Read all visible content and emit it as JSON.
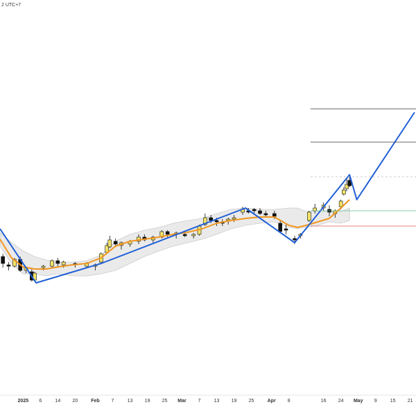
{
  "chart_data": {
    "type": "candlestick",
    "timezone_label": "2 UTC+7",
    "xlim": [
      0,
      144
    ],
    "ylim": [
      0,
      570
    ],
    "xticks": [
      {
        "value": 8,
        "label": "2025"
      },
      {
        "value": 14,
        "label": "6"
      },
      {
        "value": 20,
        "label": "14"
      },
      {
        "value": 26,
        "label": "20"
      },
      {
        "value": 33,
        "label": "Feb"
      },
      {
        "value": 39,
        "label": "7"
      },
      {
        "value": 45,
        "label": "13"
      },
      {
        "value": 51,
        "label": "19"
      },
      {
        "value": 57,
        "label": "25"
      },
      {
        "value": 63,
        "label": "Mar"
      },
      {
        "value": 69,
        "label": "7"
      },
      {
        "value": 75,
        "label": "13"
      },
      {
        "value": 81,
        "label": "19"
      },
      {
        "value": 87,
        "label": "25"
      },
      {
        "value": 94,
        "label": "Apr"
      },
      {
        "value": 100,
        "label": "8"
      },
      {
        "value": 112,
        "label": "16"
      },
      {
        "value": 118,
        "label": "24"
      },
      {
        "value": 124,
        "label": "May"
      },
      {
        "value": 130,
        "label": "9"
      },
      {
        "value": 136,
        "label": "15"
      },
      {
        "value": 142,
        "label": "21"
      }
    ],
    "up_color": "#f3e36a",
    "down_color": "#111111",
    "x": [
      1,
      3,
      5,
      7,
      9,
      11,
      12,
      15,
      18,
      20,
      22,
      26,
      30,
      33,
      35,
      37,
      38,
      40,
      42,
      45,
      48,
      50,
      53,
      56,
      58,
      61,
      64,
      67,
      69,
      71,
      73,
      75,
      77,
      79,
      81,
      84,
      86,
      88,
      90,
      92,
      95,
      97,
      99,
      102,
      104,
      107,
      109,
      112,
      114,
      116,
      118,
      119,
      120,
      121
    ],
    "open": [
      200,
      188,
      186,
      196,
      180,
      178,
      166,
      184,
      186,
      194,
      188,
      190,
      186,
      186,
      192,
      206,
      214,
      222,
      216,
      218,
      222,
      228,
      224,
      228,
      236,
      232,
      232,
      230,
      232,
      246,
      256,
      252,
      250,
      252,
      254,
      264,
      266,
      268,
      266,
      262,
      262,
      248,
      240,
      226,
      230,
      252,
      266,
      270,
      268,
      262,
      272,
      290,
      298,
      310
    ],
    "high": [
      204,
      192,
      198,
      200,
      186,
      182,
      178,
      188,
      196,
      198,
      194,
      192,
      192,
      190,
      206,
      220,
      230,
      226,
      222,
      224,
      232,
      232,
      230,
      238,
      238,
      236,
      236,
      234,
      246,
      262,
      260,
      256,
      254,
      256,
      260,
      272,
      270,
      270,
      270,
      266,
      266,
      252,
      246,
      230,
      234,
      266,
      276,
      278,
      274,
      268,
      282,
      300,
      314,
      316
    ],
    "low": [
      184,
      180,
      184,
      178,
      176,
      164,
      164,
      180,
      184,
      186,
      184,
      184,
      184,
      180,
      190,
      204,
      212,
      214,
      210,
      214,
      218,
      222,
      220,
      226,
      228,
      226,
      228,
      226,
      230,
      244,
      248,
      244,
      244,
      246,
      250,
      260,
      262,
      262,
      260,
      256,
      254,
      234,
      232,
      218,
      226,
      250,
      262,
      266,
      258,
      256,
      268,
      288,
      294,
      300
    ],
    "close": [
      190,
      186,
      196,
      180,
      184,
      166,
      176,
      186,
      194,
      190,
      192,
      188,
      190,
      188,
      204,
      216,
      224,
      218,
      220,
      222,
      228,
      224,
      228,
      236,
      232,
      234,
      230,
      232,
      244,
      256,
      252,
      250,
      248,
      254,
      256,
      268,
      264,
      266,
      262,
      260,
      258,
      236,
      238,
      224,
      232,
      264,
      270,
      274,
      264,
      266,
      280,
      296,
      304,
      302
    ],
    "overlays": [
      {
        "kind": "band",
        "color": "#d9d9d9",
        "x": [
          0,
          4,
          8,
          12,
          16,
          20,
          25,
          30,
          35,
          40,
          45,
          50,
          55,
          60,
          65,
          70,
          75,
          80,
          85,
          90,
          95,
          100,
          103,
          106,
          110,
          114,
          118,
          121
        ],
        "upper": [
          235,
          220,
          208,
          200,
          195,
          192,
          192,
          194,
          202,
          222,
          232,
          238,
          242,
          248,
          252,
          255,
          262,
          268,
          270,
          268,
          268,
          270,
          270,
          265,
          265,
          265,
          265,
          270
        ],
        "lower": [
          215,
          190,
          175,
          175,
          172,
          175,
          172,
          172,
          175,
          180,
          190,
          200,
          208,
          215,
          220,
          225,
          232,
          240,
          245,
          248,
          250,
          242,
          240,
          242,
          245,
          250,
          248,
          252
        ]
      },
      {
        "kind": "line",
        "color": "#f0961e",
        "width": 2,
        "x": [
          0,
          4,
          8,
          12,
          16,
          20,
          25,
          30,
          35,
          40,
          45,
          50,
          55,
          60,
          65,
          70,
          75,
          80,
          85,
          90,
          95,
          100,
          103,
          106,
          110,
          114,
          118,
          121
        ],
        "values": [
          225,
          198,
          185,
          182,
          182,
          185,
          188,
          190,
          198,
          215,
          222,
          225,
          228,
          232,
          235,
          240,
          248,
          252,
          255,
          257,
          257,
          245,
          242,
          245,
          250,
          255,
          270,
          282
        ]
      },
      {
        "kind": "line",
        "color": "#1f5fd6",
        "width": 2,
        "x": [
          0,
          12.5,
          35,
          85,
          102,
          121,
          123.5,
          143.5
        ],
        "values": [
          240,
          162,
          190,
          270,
          220,
          318,
          282,
          408
        ]
      }
    ],
    "levels": [
      {
        "value": 413,
        "color": "#333333",
        "dash": false
      },
      {
        "value": 365,
        "color": "#333333",
        "dash": false
      },
      {
        "value": 315,
        "color": "#bbbbbb",
        "dash": true
      },
      {
        "value": 266,
        "color": "#5cc08a",
        "dash": false
      },
      {
        "value": 244,
        "color": "#e05a5a",
        "dash": false
      }
    ],
    "levels_start": 107.5
  }
}
